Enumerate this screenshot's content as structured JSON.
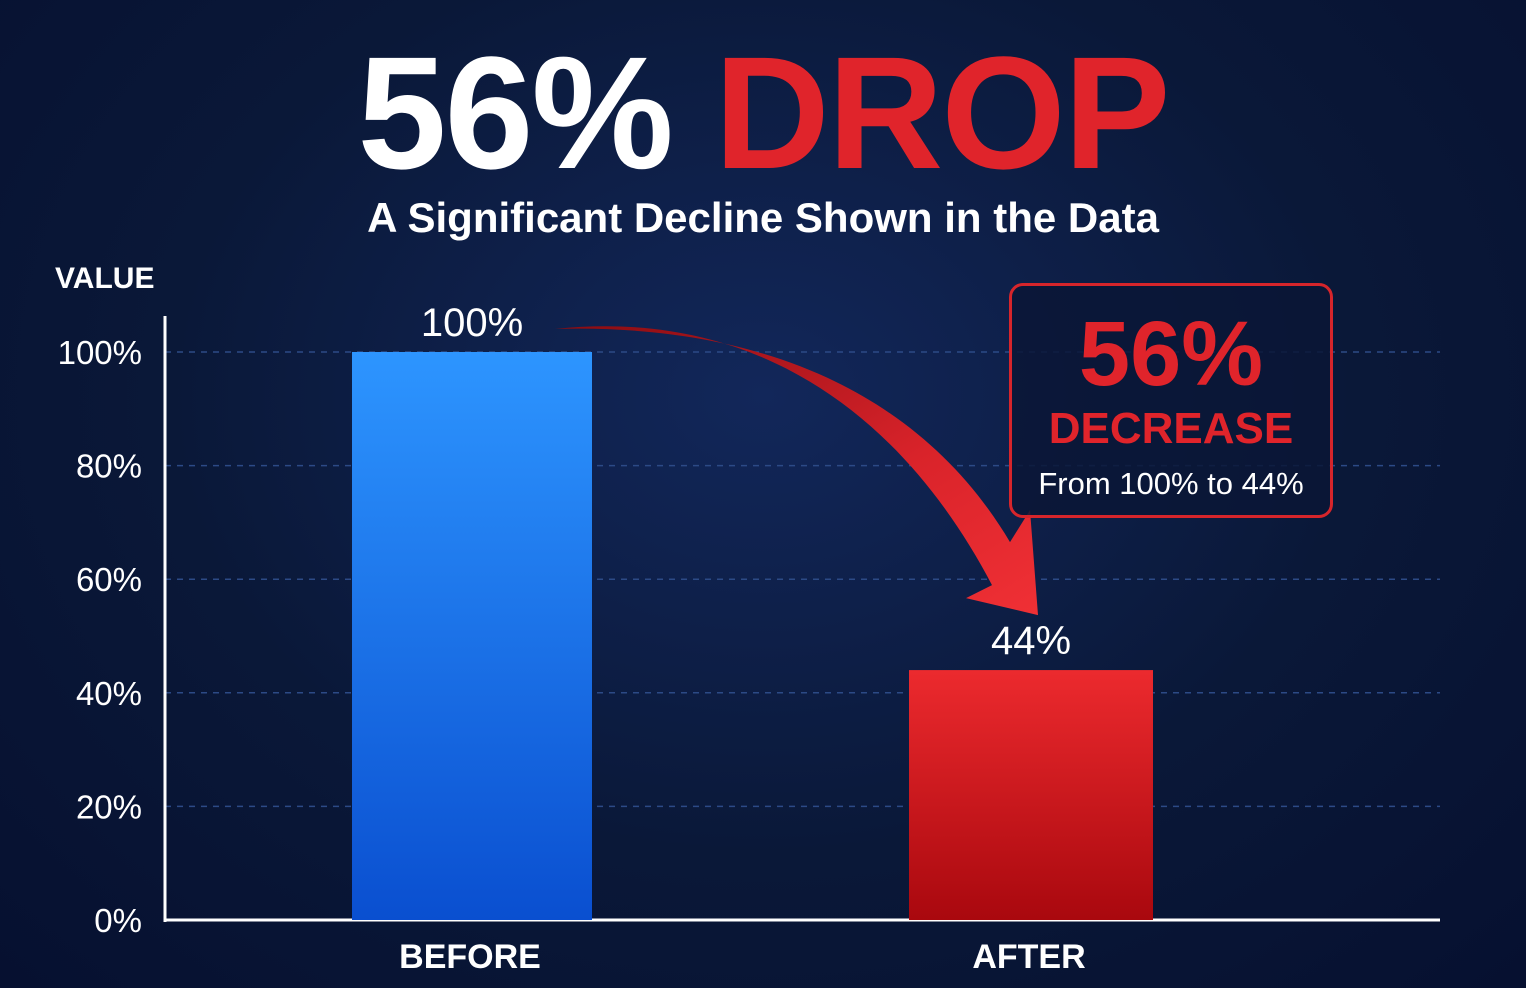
{
  "headline": {
    "white_part": "56%",
    "red_part": "DROP"
  },
  "subtitle": "A Significant Decline Shown in the Data",
  "callout": {
    "percent": "56%",
    "label": "DECREASE",
    "detail": "From 100% to 44%"
  },
  "colors": {
    "background": "#0b1a3a",
    "accent_red": "#e0242b",
    "before_bar": "#1e6ff0",
    "after_bar": "#d61f26"
  },
  "chart_data": {
    "type": "bar",
    "title": "56% DROP",
    "subtitle": "A Significant Decline Shown in the Data",
    "xlabel": "",
    "ylabel": "VALUE",
    "categories": [
      "BEFORE",
      "AFTER"
    ],
    "values": [
      100,
      44
    ],
    "data_labels": [
      "100%",
      "44%"
    ],
    "ylim": [
      0,
      100
    ],
    "yticks": [
      0,
      20,
      40,
      60,
      80,
      100
    ],
    "ytick_labels": [
      "0%",
      "20%",
      "40%",
      "60%",
      "80%",
      "100%"
    ],
    "grid": true,
    "legend": "none",
    "annotation": "56% DECREASE — From 100% to 44%"
  }
}
